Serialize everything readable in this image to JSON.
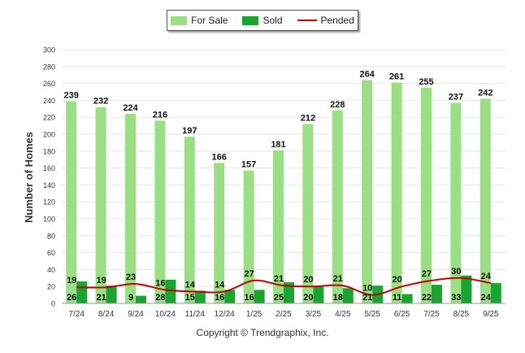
{
  "chart_data": {
    "type": "bar",
    "ylabel": "Number of Homes",
    "xlabel": "",
    "ylim": [
      0,
      300
    ],
    "yticks": [
      "0",
      "20",
      "40",
      "60",
      "80",
      "100",
      "120",
      "140",
      "160",
      "180",
      "200",
      "220",
      "240",
      "260",
      "280",
      "300"
    ],
    "categories": [
      "7/24",
      "8/24",
      "9/24",
      "10/24",
      "11/24",
      "12/24",
      "1/25",
      "2/25",
      "3/25",
      "4/25",
      "5/25",
      "6/25",
      "7/25",
      "8/25",
      "9/25"
    ],
    "series": [
      {
        "name": "For Sale",
        "type": "bar",
        "color": "#9ADF83",
        "values": [
          239,
          232,
          224,
          216,
          197,
          166,
          157,
          181,
          212,
          228,
          264,
          261,
          255,
          237,
          242
        ]
      },
      {
        "name": "Sold",
        "type": "bar",
        "color": "#1AA531",
        "values": [
          26,
          21,
          9,
          28,
          15,
          16,
          16,
          25,
          20,
          18,
          21,
          11,
          22,
          33,
          24
        ]
      },
      {
        "name": "Pended",
        "type": "line",
        "color": "#C40000",
        "values": [
          19,
          19,
          23,
          16,
          14,
          14,
          27,
          21,
          20,
          21,
          10,
          20,
          27,
          30,
          24
        ]
      }
    ],
    "legend_position": "top-center"
  },
  "legend": {
    "for_sale": "For Sale",
    "sold": "Sold",
    "pended": "Pended"
  },
  "footer": {
    "copyright": "Copyright © Trendgraphix, Inc."
  }
}
